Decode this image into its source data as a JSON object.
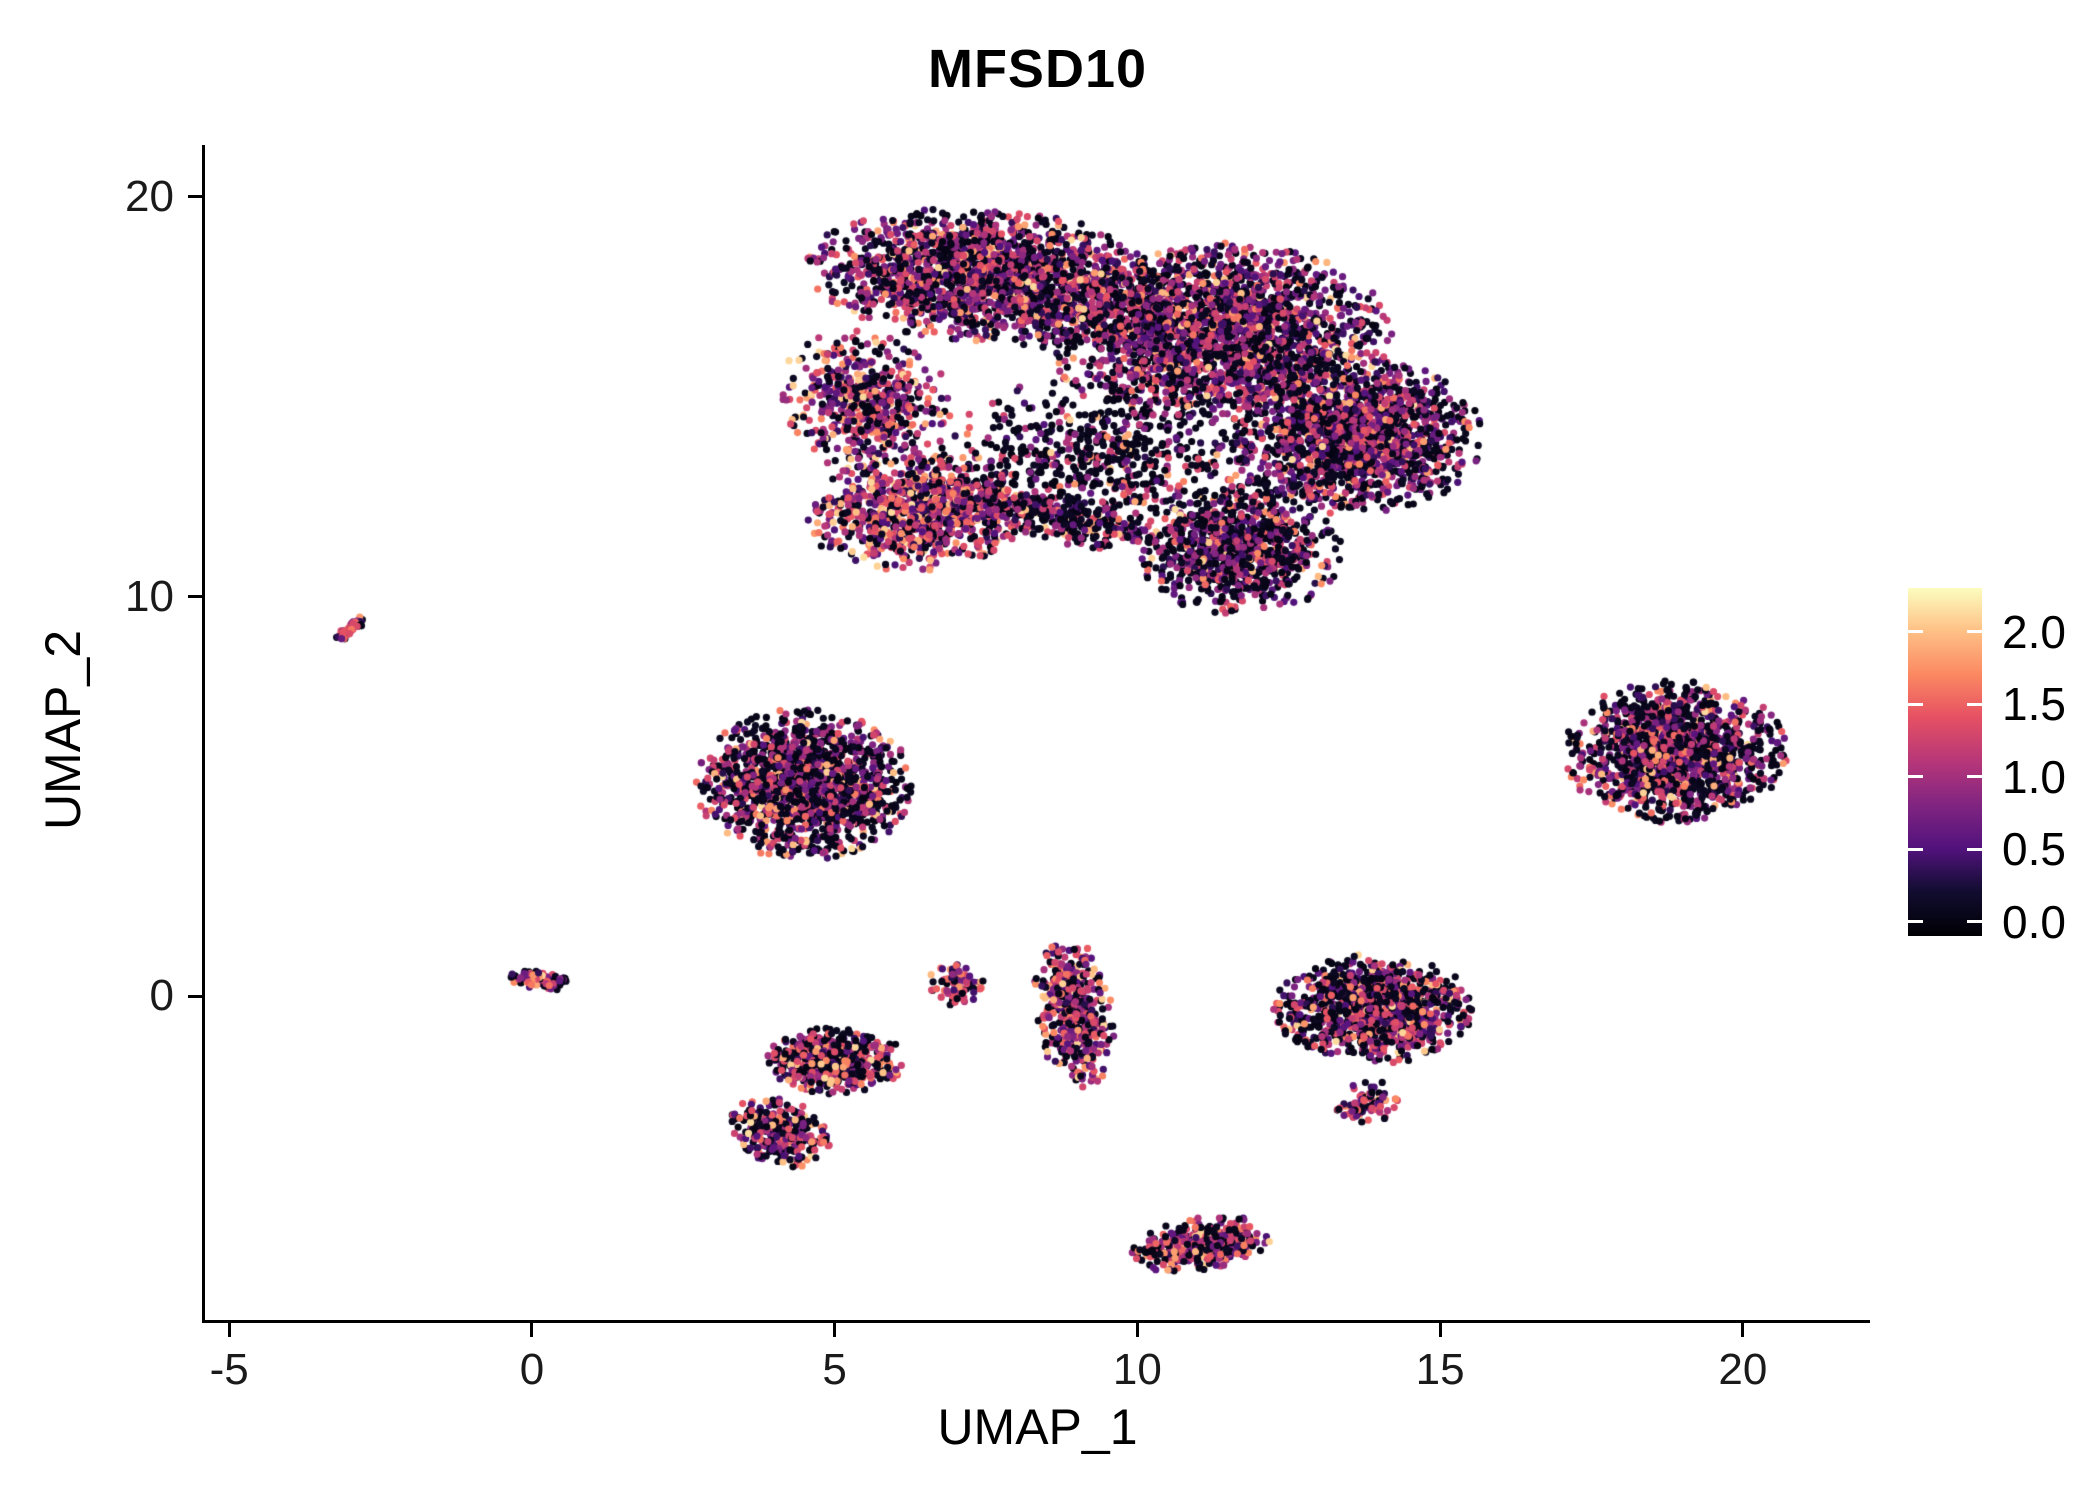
{
  "chart_data": {
    "type": "scatter",
    "title": "MFSD10",
    "xlabel": "UMAP_1",
    "ylabel": "UMAP_2",
    "xlim": [
      -5.4,
      22.1
    ],
    "ylim": [
      -8.1,
      21.3
    ],
    "grid": false,
    "background": "#ffffff",
    "axis_color": "#000000",
    "tick_label_color": "#1a1a1a",
    "point_radius_px": 3.6,
    "xticks": [
      {
        "value": -5,
        "label": "-5"
      },
      {
        "value": 0,
        "label": "0"
      },
      {
        "value": 5,
        "label": "5"
      },
      {
        "value": 10,
        "label": "10"
      },
      {
        "value": 15,
        "label": "15"
      },
      {
        "value": 20,
        "label": "20"
      }
    ],
    "yticks": [
      {
        "value": 0,
        "label": "0"
      },
      {
        "value": 10,
        "label": "10"
      },
      {
        "value": 20,
        "label": "20"
      }
    ],
    "colorbar": {
      "position": "right",
      "limits": [
        -0.1,
        2.3
      ],
      "ticks": [
        {
          "value": 0.0,
          "label": "0.0"
        },
        {
          "value": 0.5,
          "label": "0.5"
        },
        {
          "value": 1.0,
          "label": "1.0"
        },
        {
          "value": 1.5,
          "label": "1.5"
        },
        {
          "value": 2.0,
          "label": "2.0"
        }
      ]
    },
    "colormap": "magma",
    "colormap_stops": [
      [
        0.0,
        "#000004"
      ],
      [
        0.13,
        "#120d31"
      ],
      [
        0.25,
        "#51127c"
      ],
      [
        0.38,
        "#822581"
      ],
      [
        0.5,
        "#b63679"
      ],
      [
        0.63,
        "#e65163"
      ],
      [
        0.75,
        "#fb8861"
      ],
      [
        0.88,
        "#fec287"
      ],
      [
        1.0,
        "#fcfdbf"
      ]
    ],
    "clusters": [
      {
        "name": "main-top-left",
        "cx": 7.6,
        "cy": 18.0,
        "rx": 3.1,
        "ry": 1.7,
        "rot": -8,
        "n": 2000,
        "p_zero": 0.38,
        "p_high": 0.14
      },
      {
        "name": "main-top-right",
        "cx": 11.3,
        "cy": 16.6,
        "rx": 2.9,
        "ry": 2.3,
        "rot": 0,
        "n": 2400,
        "p_zero": 0.4,
        "p_high": 0.13
      },
      {
        "name": "main-right-lobe",
        "cx": 13.6,
        "cy": 14.0,
        "rx": 2.1,
        "ry": 2.0,
        "rot": 0,
        "n": 1700,
        "p_zero": 0.42,
        "p_high": 0.12
      },
      {
        "name": "main-left-arm",
        "cx": 5.5,
        "cy": 14.9,
        "rx": 1.4,
        "ry": 1.9,
        "rot": 10,
        "n": 550,
        "p_zero": 0.3,
        "p_high": 0.28
      },
      {
        "name": "main-left-lower",
        "cx": 6.4,
        "cy": 12.1,
        "rx": 1.9,
        "ry": 1.5,
        "rot": 15,
        "n": 950,
        "p_zero": 0.24,
        "p_high": 0.34
      },
      {
        "name": "main-mid-sparse",
        "cx": 9.3,
        "cy": 13.4,
        "rx": 2.7,
        "ry": 2.1,
        "rot": 0,
        "n": 650,
        "p_zero": 0.62,
        "p_high": 0.08
      },
      {
        "name": "main-bottom-lobe",
        "cx": 11.7,
        "cy": 11.2,
        "rx": 1.7,
        "ry": 1.7,
        "rot": 0,
        "n": 950,
        "p_zero": 0.5,
        "p_high": 0.1
      },
      {
        "name": "main-diag-streak",
        "cx": 8.8,
        "cy": 11.9,
        "rx": 1.7,
        "ry": 0.55,
        "rot": -18,
        "n": 260,
        "p_zero": 0.55,
        "p_high": 0.1
      },
      {
        "name": "left-streak",
        "cx": -3.0,
        "cy": 9.2,
        "rx": 0.42,
        "ry": 0.12,
        "rot": 52,
        "n": 70,
        "p_zero": 0.25,
        "p_high": 0.4
      },
      {
        "name": "mid-left-cluster",
        "cx": 4.5,
        "cy": 5.3,
        "rx": 1.8,
        "ry": 1.9,
        "rot": 0,
        "n": 1600,
        "p_zero": 0.46,
        "p_high": 0.14
      },
      {
        "name": "right-cluster",
        "cx": 18.9,
        "cy": 6.1,
        "rx": 1.9,
        "ry": 1.8,
        "rot": -10,
        "n": 1500,
        "p_zero": 0.5,
        "p_high": 0.14
      },
      {
        "name": "origin-small",
        "cx": 0.1,
        "cy": 0.4,
        "rx": 0.55,
        "ry": 0.22,
        "rot": -12,
        "n": 90,
        "p_zero": 0.28,
        "p_high": 0.3
      },
      {
        "name": "small-mid",
        "cx": 7.0,
        "cy": 0.3,
        "rx": 0.5,
        "ry": 0.55,
        "rot": 30,
        "n": 75,
        "p_zero": 0.3,
        "p_high": 0.3
      },
      {
        "name": "tall-mid",
        "cx": 8.95,
        "cy": -0.4,
        "rx": 0.65,
        "ry": 1.9,
        "rot": 5,
        "n": 480,
        "p_zero": 0.34,
        "p_high": 0.26
      },
      {
        "name": "lower-left-blob",
        "cx": 5.0,
        "cy": -1.6,
        "rx": 1.15,
        "ry": 0.85,
        "rot": 0,
        "n": 620,
        "p_zero": 0.44,
        "p_high": 0.2
      },
      {
        "name": "lower-left-tail",
        "cx": 4.1,
        "cy": -3.4,
        "rx": 0.75,
        "ry": 0.95,
        "rot": 40,
        "n": 330,
        "p_zero": 0.32,
        "p_high": 0.3
      },
      {
        "name": "lower-right-blob",
        "cx": 13.9,
        "cy": -0.3,
        "rx": 1.65,
        "ry": 1.4,
        "rot": 0,
        "n": 1100,
        "p_zero": 0.46,
        "p_high": 0.2
      },
      {
        "name": "lower-right-arc",
        "cx": 13.8,
        "cy": -2.7,
        "rx": 0.5,
        "ry": 0.65,
        "rot": -30,
        "n": 90,
        "p_zero": 0.28,
        "p_high": 0.32
      },
      {
        "name": "bottom-blob",
        "cx": 11.05,
        "cy": -6.2,
        "rx": 1.2,
        "ry": 0.65,
        "rot": 15,
        "n": 380,
        "p_zero": 0.32,
        "p_high": 0.22
      }
    ]
  }
}
